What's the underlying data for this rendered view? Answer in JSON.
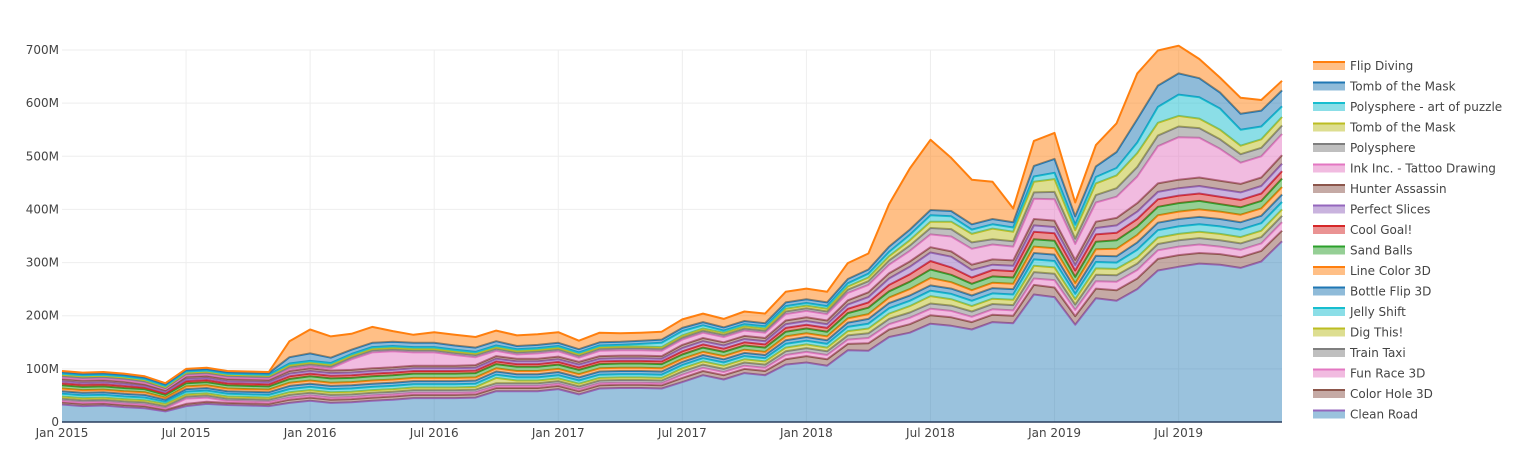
{
  "chart_data": {
    "type": "area",
    "stacked": true,
    "title": "",
    "xlabel": "",
    "ylabel": "",
    "ylim": [
      0,
      700000000
    ],
    "grid": true,
    "legend_position": "right",
    "x_tick_labels": [
      "Jan 2015",
      "Jul 2015",
      "Jan 2016",
      "Jul 2016",
      "Jan 2017",
      "Jul 2017",
      "Jan 2018",
      "Jul 2018",
      "Jan 2019",
      "Jul 2019"
    ],
    "y_tick_labels": [
      "0",
      "100M",
      "200M",
      "300M",
      "400M",
      "500M",
      "600M",
      "700M"
    ],
    "y_tick_values": [
      0,
      100,
      200,
      300,
      400,
      500,
      600,
      700
    ],
    "value_unit": "M",
    "x": [
      "2015-01",
      "2015-02",
      "2015-03",
      "2015-04",
      "2015-05",
      "2015-06",
      "2015-07",
      "2015-08",
      "2015-09",
      "2015-10",
      "2015-11",
      "2015-12",
      "2016-01",
      "2016-02",
      "2016-03",
      "2016-04",
      "2016-05",
      "2016-06",
      "2016-07",
      "2016-08",
      "2016-09",
      "2016-10",
      "2016-11",
      "2016-12",
      "2017-01",
      "2017-02",
      "2017-03",
      "2017-04",
      "2017-05",
      "2017-06",
      "2017-07",
      "2017-08",
      "2017-09",
      "2017-10",
      "2017-11",
      "2017-12",
      "2018-01",
      "2018-02",
      "2018-03",
      "2018-04",
      "2018-05",
      "2018-06",
      "2018-07",
      "2018-08",
      "2018-09",
      "2018-10",
      "2018-11",
      "2018-12",
      "2019-01",
      "2019-02",
      "2019-03",
      "2019-04",
      "2019-05",
      "2019-06",
      "2019-07",
      "2019-08",
      "2019-09",
      "2019-10",
      "2019-11",
      "2019-12"
    ],
    "series": [
      {
        "name": "Clean Road",
        "color": "#9467bd",
        "values": [
          33,
          30,
          31,
          28,
          26,
          20,
          30,
          34,
          32,
          31,
          30,
          36,
          40,
          36,
          37,
          40,
          42,
          45,
          45,
          45,
          46,
          58,
          58,
          58,
          62,
          52,
          63,
          64,
          64,
          63,
          75,
          88,
          80,
          92,
          88,
          108,
          112,
          106,
          135,
          134,
          160,
          168,
          185,
          181,
          174,
          188,
          186,
          240,
          235,
          183,
          233,
          228,
          250,
          285,
          292,
          298,
          296,
          290,
          302,
          340
        ]
      },
      {
        "name": "Color Hole 3D",
        "color": "#8c564b",
        "values": [
          4,
          4,
          4,
          4,
          4,
          3,
          4,
          4,
          4,
          4,
          4,
          6,
          6,
          6,
          6,
          6,
          6,
          6,
          6,
          6,
          6,
          6,
          6,
          6,
          6,
          6,
          6,
          6,
          6,
          6,
          8,
          8,
          8,
          8,
          8,
          10,
          12,
          12,
          12,
          14,
          14,
          16,
          16,
          16,
          14,
          14,
          14,
          18,
          18,
          16,
          18,
          20,
          20,
          22,
          22,
          20,
          20,
          20,
          20,
          20
        ]
      },
      {
        "name": "Fun Race 3D",
        "color": "#e377c2",
        "values": [
          3,
          3,
          3,
          3,
          3,
          3,
          10,
          8,
          4,
          4,
          4,
          4,
          4,
          4,
          4,
          4,
          4,
          4,
          4,
          4,
          4,
          4,
          4,
          4,
          4,
          4,
          4,
          4,
          4,
          4,
          6,
          6,
          6,
          6,
          6,
          8,
          8,
          8,
          8,
          10,
          10,
          12,
          12,
          12,
          10,
          10,
          10,
          12,
          14,
          12,
          14,
          16,
          16,
          16,
          16,
          16,
          14,
          14,
          14,
          16
        ]
      },
      {
        "name": "Train Taxi",
        "color": "#7f7f7f",
        "values": [
          4,
          4,
          4,
          4,
          4,
          4,
          4,
          4,
          4,
          4,
          4,
          5,
          5,
          5,
          5,
          5,
          5,
          5,
          5,
          5,
          5,
          5,
          5,
          5,
          5,
          5,
          5,
          5,
          5,
          5,
          6,
          6,
          6,
          6,
          6,
          7,
          7,
          7,
          8,
          9,
          10,
          10,
          10,
          10,
          10,
          10,
          10,
          12,
          12,
          10,
          12,
          12,
          12,
          12,
          12,
          12,
          12,
          12,
          12,
          12
        ]
      },
      {
        "name": "Dig This!",
        "color": "#bcbd22",
        "values": [
          4,
          4,
          4,
          4,
          4,
          4,
          4,
          4,
          4,
          4,
          4,
          5,
          5,
          5,
          5,
          5,
          5,
          5,
          5,
          5,
          5,
          10,
          5,
          5,
          5,
          5,
          5,
          5,
          5,
          5,
          6,
          6,
          6,
          6,
          6,
          7,
          7,
          7,
          8,
          9,
          10,
          12,
          14,
          12,
          10,
          10,
          10,
          12,
          12,
          10,
          12,
          12,
          12,
          12,
          12,
          12,
          12,
          12,
          12,
          12
        ]
      },
      {
        "name": "Jelly Shift",
        "color": "#17becf",
        "values": [
          5,
          5,
          5,
          5,
          5,
          4,
          5,
          5,
          5,
          5,
          5,
          6,
          6,
          6,
          6,
          6,
          6,
          6,
          6,
          6,
          6,
          6,
          6,
          6,
          6,
          6,
          6,
          6,
          6,
          6,
          6,
          6,
          6,
          6,
          6,
          7,
          7,
          7,
          8,
          9,
          10,
          10,
          10,
          10,
          10,
          10,
          10,
          12,
          12,
          10,
          12,
          12,
          14,
          14,
          14,
          14,
          14,
          14,
          14,
          14
        ]
      },
      {
        "name": "Bottle Flip 3D",
        "color": "#1f77b4",
        "values": [
          5,
          5,
          5,
          5,
          5,
          4,
          5,
          5,
          5,
          5,
          5,
          6,
          6,
          6,
          6,
          6,
          6,
          6,
          6,
          6,
          6,
          6,
          6,
          6,
          6,
          6,
          6,
          6,
          6,
          6,
          6,
          6,
          6,
          6,
          6,
          7,
          7,
          7,
          8,
          9,
          10,
          10,
          10,
          10,
          10,
          10,
          10,
          12,
          12,
          10,
          12,
          12,
          14,
          14,
          14,
          14,
          14,
          14,
          14,
          14
        ]
      },
      {
        "name": "Line Color 3D",
        "color": "#ff7f0e",
        "values": [
          5,
          5,
          5,
          5,
          5,
          4,
          5,
          5,
          5,
          5,
          5,
          6,
          6,
          6,
          6,
          6,
          6,
          6,
          6,
          6,
          6,
          6,
          6,
          6,
          6,
          6,
          6,
          6,
          6,
          6,
          6,
          6,
          6,
          6,
          6,
          7,
          7,
          7,
          8,
          9,
          10,
          12,
          14,
          12,
          10,
          10,
          10,
          12,
          12,
          10,
          12,
          14,
          14,
          14,
          14,
          14,
          14,
          14,
          14,
          14
        ]
      },
      {
        "name": "Sand Balls",
        "color": "#2ca02c",
        "values": [
          6,
          6,
          6,
          6,
          6,
          5,
          6,
          6,
          6,
          6,
          6,
          7,
          8,
          8,
          8,
          8,
          8,
          8,
          8,
          8,
          8,
          8,
          8,
          8,
          8,
          8,
          8,
          8,
          8,
          8,
          8,
          8,
          8,
          8,
          8,
          9,
          9,
          9,
          10,
          12,
          12,
          14,
          16,
          14,
          12,
          12,
          12,
          14,
          14,
          12,
          14,
          16,
          16,
          16,
          16,
          16,
          14,
          14,
          14,
          16
        ]
      },
      {
        "name": "Cool Goal!",
        "color": "#d62728",
        "values": [
          4,
          4,
          4,
          4,
          3,
          3,
          4,
          4,
          4,
          4,
          4,
          5,
          5,
          5,
          5,
          5,
          5,
          5,
          5,
          5,
          5,
          5,
          5,
          5,
          5,
          5,
          5,
          5,
          5,
          5,
          6,
          6,
          6,
          6,
          6,
          7,
          7,
          7,
          8,
          10,
          12,
          14,
          16,
          14,
          12,
          12,
          12,
          14,
          14,
          12,
          14,
          14,
          14,
          14,
          14,
          14,
          14,
          14,
          14,
          14
        ]
      },
      {
        "name": "Perfect Slices",
        "color": "#9467bd",
        "values": [
          4,
          4,
          4,
          4,
          3,
          3,
          4,
          4,
          4,
          4,
          4,
          5,
          5,
          5,
          5,
          5,
          5,
          5,
          5,
          5,
          5,
          5,
          5,
          5,
          5,
          5,
          5,
          5,
          5,
          5,
          6,
          6,
          6,
          6,
          6,
          7,
          7,
          7,
          8,
          10,
          12,
          14,
          16,
          20,
          14,
          10,
          10,
          12,
          12,
          10,
          12,
          14,
          14,
          14,
          14,
          14,
          14,
          14,
          14,
          14
        ]
      },
      {
        "name": "Hunter Assassin",
        "color": "#8c564b",
        "values": [
          4,
          4,
          4,
          4,
          3,
          3,
          4,
          4,
          4,
          4,
          4,
          5,
          5,
          5,
          5,
          5,
          5,
          5,
          5,
          5,
          5,
          5,
          5,
          5,
          5,
          5,
          5,
          5,
          5,
          5,
          6,
          6,
          6,
          6,
          6,
          7,
          7,
          7,
          8,
          9,
          10,
          10,
          10,
          10,
          10,
          10,
          10,
          12,
          12,
          10,
          12,
          14,
          16,
          16,
          16,
          16,
          16,
          16,
          16,
          16
        ]
      },
      {
        "name": "Ink Inc. - Tattoo Drawing",
        "color": "#e377c2",
        "values": [
          3,
          3,
          3,
          3,
          3,
          2,
          3,
          3,
          3,
          3,
          3,
          4,
          4,
          4,
          20,
          30,
          30,
          25,
          25,
          20,
          15,
          10,
          8,
          10,
          10,
          8,
          10,
          10,
          10,
          10,
          10,
          10,
          10,
          10,
          10,
          12,
          12,
          12,
          14,
          14,
          16,
          20,
          24,
          28,
          30,
          28,
          26,
          38,
          40,
          30,
          36,
          40,
          50,
          70,
          80,
          75,
          60,
          40,
          40,
          40
        ]
      },
      {
        "name": "Polysphere",
        "color": "#7f7f7f",
        "values": [
          3,
          3,
          3,
          3,
          3,
          2,
          3,
          3,
          3,
          3,
          3,
          4,
          4,
          4,
          4,
          4,
          4,
          4,
          4,
          4,
          4,
          4,
          4,
          4,
          4,
          4,
          4,
          4,
          4,
          4,
          4,
          4,
          4,
          4,
          4,
          5,
          5,
          5,
          6,
          7,
          8,
          10,
          12,
          14,
          12,
          10,
          10,
          12,
          14,
          10,
          14,
          16,
          18,
          20,
          20,
          18,
          18,
          16,
          16,
          16
        ]
      },
      {
        "name": "Tomb of the Mask",
        "color": "#bcbd22",
        "values": [
          2,
          2,
          2,
          2,
          2,
          2,
          2,
          2,
          2,
          2,
          2,
          3,
          3,
          3,
          3,
          3,
          3,
          3,
          3,
          3,
          3,
          3,
          3,
          3,
          3,
          3,
          3,
          3,
          3,
          3,
          4,
          4,
          4,
          4,
          4,
          5,
          5,
          5,
          6,
          7,
          8,
          10,
          12,
          14,
          16,
          20,
          18,
          20,
          24,
          16,
          22,
          24,
          26,
          24,
          20,
          18,
          18,
          16,
          16,
          16
        ]
      },
      {
        "name": "Polysphere - art of puzzle",
        "color": "#17becf",
        "values": [
          2,
          2,
          2,
          2,
          2,
          2,
          2,
          2,
          2,
          2,
          2,
          3,
          3,
          3,
          3,
          3,
          3,
          3,
          3,
          3,
          3,
          3,
          3,
          3,
          3,
          3,
          3,
          3,
          5,
          8,
          8,
          6,
          4,
          4,
          4,
          5,
          5,
          5,
          6,
          7,
          8,
          10,
          12,
          10,
          8,
          8,
          8,
          10,
          12,
          10,
          12,
          14,
          20,
          30,
          40,
          40,
          40,
          30,
          24,
          20
        ]
      },
      {
        "name": "Tomb of the Mask",
        "color": "#1f77b4",
        "values": [
          3,
          3,
          3,
          3,
          3,
          3,
          3,
          3,
          3,
          3,
          3,
          12,
          14,
          10,
          8,
          8,
          8,
          8,
          8,
          8,
          8,
          8,
          6,
          6,
          6,
          6,
          6,
          6,
          6,
          6,
          6,
          6,
          6,
          6,
          6,
          7,
          7,
          7,
          8,
          8,
          10,
          10,
          10,
          10,
          10,
          10,
          10,
          20,
          26,
          16,
          20,
          30,
          44,
          40,
          40,
          36,
          30,
          30,
          30,
          30
        ]
      },
      {
        "name": "Flip Diving",
        "color": "#ff7f0e",
        "values": [
          2,
          2,
          2,
          2,
          2,
          2,
          2,
          2,
          2,
          2,
          2,
          30,
          45,
          40,
          30,
          30,
          20,
          15,
          20,
          20,
          20,
          20,
          20,
          20,
          20,
          16,
          18,
          16,
          15,
          15,
          16,
          16,
          16,
          18,
          18,
          20,
          20,
          20,
          30,
          30,
          80,
          115,
          132,
          100,
          84,
          70,
          26,
          47,
          49,
          26,
          40,
          54,
          86,
          66,
          52,
          36,
          28,
          30,
          20,
          18
        ]
      }
    ]
  }
}
